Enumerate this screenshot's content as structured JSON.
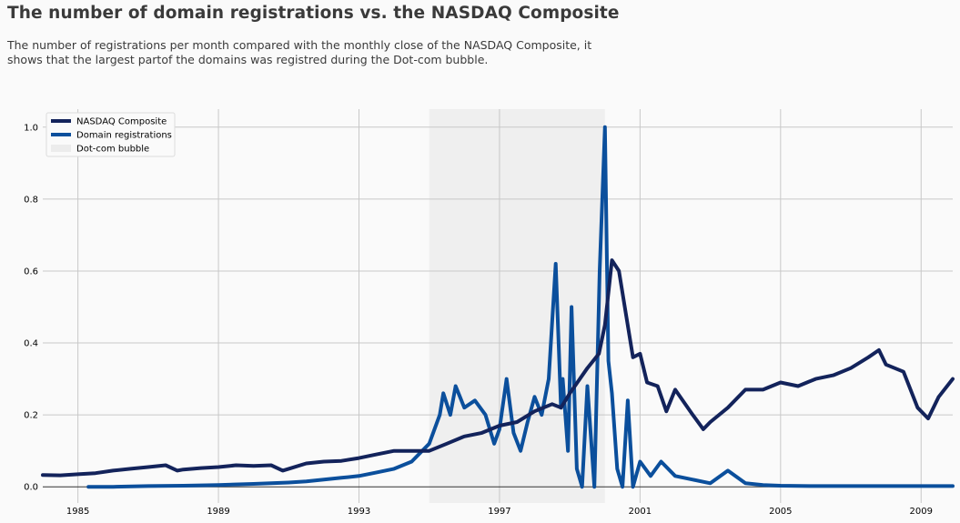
{
  "title": "The number of domain registrations vs. the NASDAQ Composite",
  "subtitle_lines": [
    "The number of registrations per month compared with the monthly close of the NASDAQ Composite, it",
    "shows that the largest partof the domains was registred during the Dot-com bubble."
  ],
  "chart_data": {
    "type": "line",
    "x_ticks": [
      "1985",
      "1989",
      "1993",
      "1997",
      "2001",
      "2005",
      "2009"
    ],
    "x_tick_years": [
      1985,
      1989,
      1993,
      1997,
      2001,
      2005,
      2009
    ],
    "y_ticks": [
      "0.0",
      "0.2",
      "0.4",
      "0.6",
      "0.8",
      "1.0"
    ],
    "y_tick_values": [
      0,
      0.2,
      0.4,
      0.6,
      0.8,
      1.0
    ],
    "xlim": [
      1984.0,
      2009.9
    ],
    "ylim": [
      -0.045,
      1.05
    ],
    "grid": true,
    "legend_position": "upper-left",
    "shaded_regions": [
      {
        "name": "Dot-com bubble",
        "x_start": 1995.0,
        "x_end": 2000.0,
        "color": "#efefef"
      }
    ],
    "series": [
      {
        "name": "NASDAQ Composite",
        "color": "#13235b",
        "x": [
          1984.0,
          1984.5,
          1985.0,
          1985.5,
          1986.0,
          1986.5,
          1987.0,
          1987.5,
          1987.83,
          1988.0,
          1988.5,
          1989.0,
          1989.5,
          1990.0,
          1990.5,
          1990.83,
          1991.0,
          1991.5,
          1992.0,
          1992.5,
          1993.0,
          1993.5,
          1994.0,
          1994.5,
          1995.0,
          1995.5,
          1996.0,
          1996.5,
          1997.0,
          1997.5,
          1998.0,
          1998.5,
          1998.75,
          1999.0,
          1999.5,
          1999.83,
          2000.0,
          2000.2,
          2000.4,
          2000.6,
          2000.8,
          2001.0,
          2001.2,
          2001.5,
          2001.75,
          2002.0,
          2002.5,
          2002.8,
          2003.0,
          2003.5,
          2004.0,
          2004.5,
          2005.0,
          2005.5,
          2006.0,
          2006.5,
          2007.0,
          2007.5,
          2007.8,
          2008.0,
          2008.5,
          2008.9,
          2009.2,
          2009.5,
          2009.9
        ],
        "y": [
          0.033,
          0.032,
          0.035,
          0.038,
          0.045,
          0.05,
          0.055,
          0.06,
          0.045,
          0.048,
          0.052,
          0.055,
          0.06,
          0.058,
          0.06,
          0.045,
          0.05,
          0.065,
          0.07,
          0.072,
          0.08,
          0.09,
          0.1,
          0.1,
          0.1,
          0.12,
          0.14,
          0.15,
          0.17,
          0.18,
          0.21,
          0.23,
          0.22,
          0.26,
          0.33,
          0.37,
          0.45,
          0.63,
          0.6,
          0.48,
          0.36,
          0.37,
          0.29,
          0.28,
          0.21,
          0.27,
          0.2,
          0.16,
          0.18,
          0.22,
          0.27,
          0.27,
          0.29,
          0.28,
          0.3,
          0.31,
          0.33,
          0.36,
          0.38,
          0.34,
          0.32,
          0.22,
          0.19,
          0.25,
          0.3
        ]
      },
      {
        "name": "Domain registrations",
        "color": "#0b4f9c",
        "x": [
          1985.3,
          1986.0,
          1987.0,
          1988.0,
          1989.0,
          1990.0,
          1990.5,
          1991.0,
          1991.5,
          1992.0,
          1992.5,
          1993.0,
          1993.5,
          1994.0,
          1994.5,
          1995.0,
          1995.3,
          1995.4,
          1995.6,
          1995.75,
          1996.0,
          1996.3,
          1996.6,
          1996.85,
          1997.0,
          1997.2,
          1997.4,
          1997.6,
          1997.8,
          1998.0,
          1998.2,
          1998.4,
          1998.6,
          1998.75,
          1998.8,
          1998.95,
          1999.05,
          1999.2,
          1999.35,
          1999.5,
          1999.7,
          1999.85,
          2000.0,
          2000.1,
          2000.2,
          2000.35,
          2000.5,
          2000.65,
          2000.8,
          2001.0,
          2001.3,
          2001.6,
          2002.0,
          2002.5,
          2003.0,
          2003.5,
          2004.0,
          2004.5,
          2005.0,
          2006.0,
          2007.0,
          2008.0,
          2009.0,
          2009.9
        ],
        "y": [
          0.0,
          0.0,
          0.002,
          0.003,
          0.005,
          0.008,
          0.01,
          0.012,
          0.015,
          0.02,
          0.025,
          0.03,
          0.04,
          0.05,
          0.07,
          0.12,
          0.2,
          0.26,
          0.2,
          0.28,
          0.22,
          0.24,
          0.2,
          0.12,
          0.16,
          0.3,
          0.15,
          0.1,
          0.18,
          0.25,
          0.2,
          0.3,
          0.62,
          0.22,
          0.3,
          0.1,
          0.5,
          0.05,
          0.0,
          0.28,
          0.0,
          0.6,
          1.0,
          0.35,
          0.26,
          0.05,
          0.0,
          0.24,
          0.0,
          0.07,
          0.03,
          0.07,
          0.03,
          0.02,
          0.01,
          0.045,
          0.01,
          0.005,
          0.003,
          0.002,
          0.002,
          0.002,
          0.002,
          0.002
        ]
      }
    ]
  },
  "legend": [
    {
      "label": "NASDAQ Composite",
      "kind": "line",
      "color": "#13235b"
    },
    {
      "label": "Domain registrations",
      "kind": "line",
      "color": "#0b4f9c"
    },
    {
      "label": "Dot-com bubble",
      "kind": "patch",
      "color": "#ececec"
    }
  ]
}
